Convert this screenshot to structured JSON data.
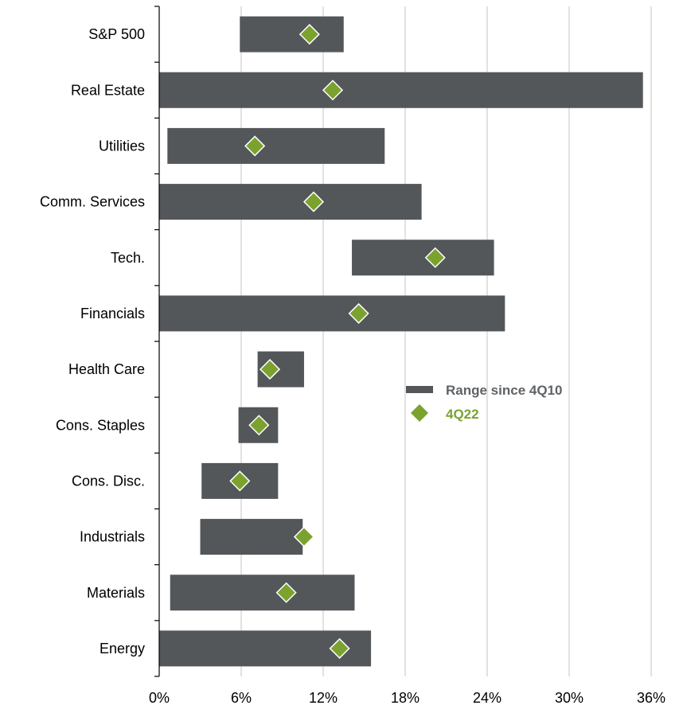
{
  "chart_data": {
    "type": "bar",
    "categories": [
      "S&P 500",
      "Real Estate",
      "Utilities",
      "Comm. Services",
      "Tech.",
      "Financials",
      "Health Care",
      "Cons. Staples",
      "Cons. Disc.",
      "Industrials",
      "Materials",
      "Energy"
    ],
    "series": [
      {
        "name": "Range since 4Q10",
        "type": "range",
        "low": [
          5.9,
          0.0,
          0.6,
          0.0,
          14.1,
          0.0,
          7.2,
          5.8,
          3.1,
          3.0,
          0.8,
          0.0
        ],
        "high": [
          13.5,
          35.4,
          16.5,
          19.2,
          24.5,
          25.3,
          10.6,
          8.7,
          8.7,
          10.5,
          14.3,
          15.5
        ]
      },
      {
        "name": "4Q22",
        "type": "marker",
        "values": [
          11.0,
          12.7,
          7.0,
          11.3,
          20.2,
          14.6,
          8.1,
          7.3,
          5.9,
          10.6,
          9.3,
          13.2
        ]
      }
    ],
    "xlim": [
      0,
      36
    ],
    "xticks": [
      "0%",
      "6%",
      "12%",
      "18%",
      "24%",
      "30%",
      "36%"
    ],
    "xtick_values": [
      0,
      6,
      12,
      18,
      24,
      30,
      36
    ],
    "grid": "vertical",
    "legend_position": "center-right",
    "colors": {
      "bar": "#54575a",
      "marker": "#7ba22f",
      "marker_outline": "#ffffff",
      "legend_range_text": "#5f6366",
      "legend_marker_text": "#7ba22f",
      "grid": "#d9d9d9",
      "axis": "#000000"
    }
  }
}
